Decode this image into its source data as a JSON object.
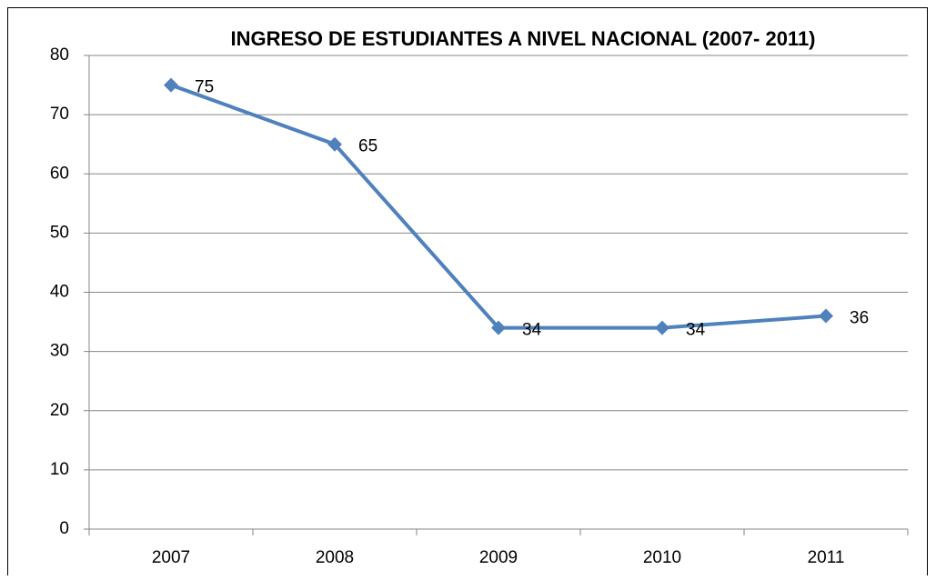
{
  "chart_data": {
    "type": "line",
    "title": "INGRESO DE ESTUDIANTES A NIVEL NACIONAL (2007- 2011)",
    "categories": [
      "2007",
      "2008",
      "2009",
      "2010",
      "2011"
    ],
    "values": [
      75,
      65,
      34,
      34,
      36
    ],
    "color": "#4f81bd",
    "ylim": [
      0,
      80
    ],
    "yticks": [
      0,
      10,
      20,
      30,
      40,
      50,
      60,
      70,
      80
    ],
    "grid": true
  }
}
